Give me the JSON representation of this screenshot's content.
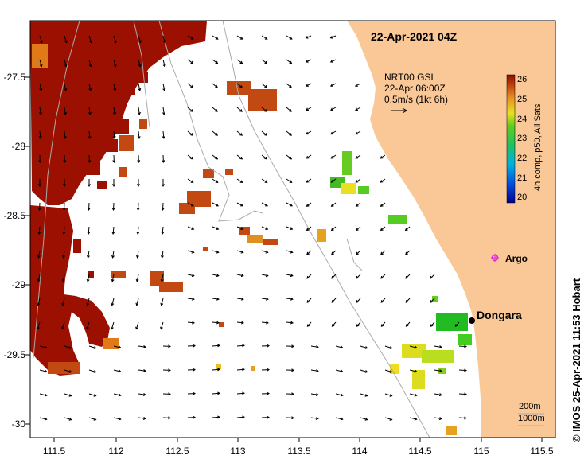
{
  "title": "22-Apr-2021 04Z",
  "current_legend": {
    "line1": "NRT00 GSL",
    "line2": "22-Apr 06:00Z",
    "line3": "0.5m/s (1kt 6h)"
  },
  "colorbar": {
    "label": "4h comp, p50, All Sats",
    "ticks": [
      "26",
      "25",
      "24",
      "23",
      "22",
      "21",
      "20"
    ]
  },
  "places": {
    "argo": "Argo",
    "dongara": "Dongara"
  },
  "depth_legend": {
    "line1": "200m",
    "line2": "1000m"
  },
  "credit": "© IMOS 25-Apr-2021 11:53 Hobart",
  "axes": {
    "x_ticks": [
      "111.5",
      "112",
      "112.5",
      "113",
      "113.5",
      "114",
      "114.5",
      "115",
      "115.5"
    ],
    "y_ticks": [
      "-27.5",
      "-28",
      "-28.5",
      "-29",
      "-29.5",
      "-30"
    ]
  },
  "colors": {
    "land": "#fac896",
    "warm_sst": "#9b1000",
    "mid_sst": "#c24a12",
    "ocean": "#ffffff"
  }
}
